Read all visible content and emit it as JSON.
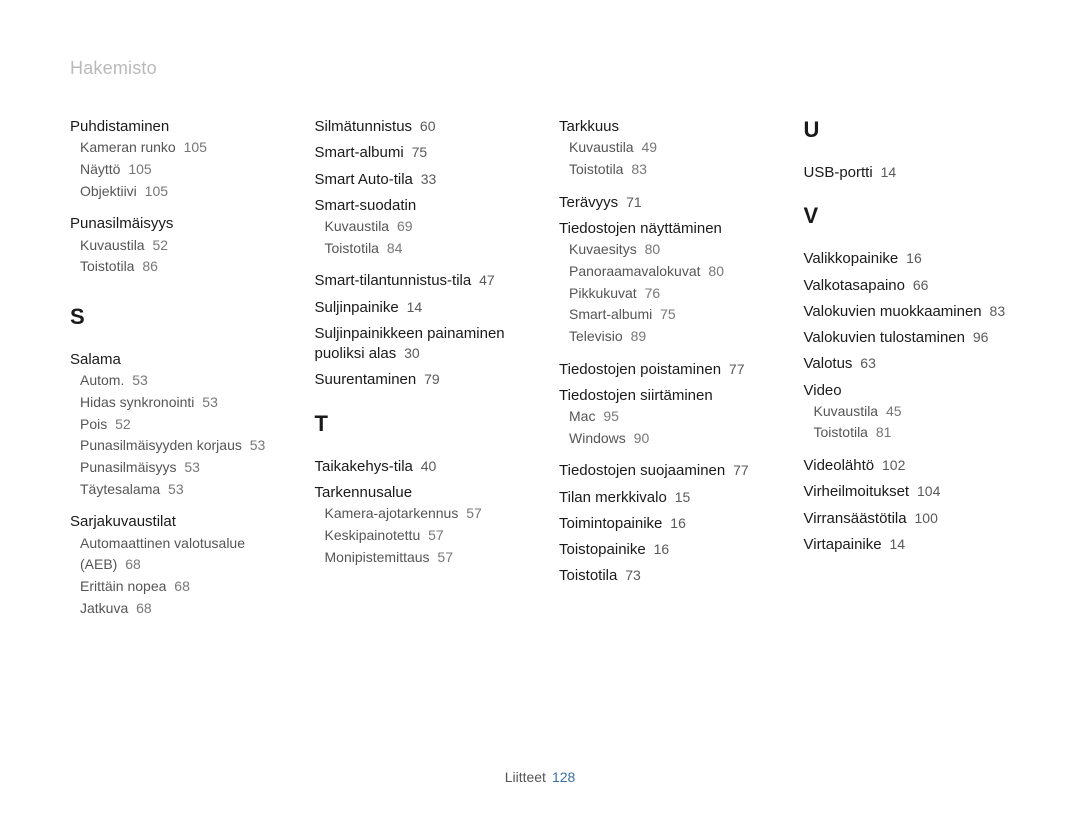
{
  "header": "Hakemisto",
  "footer": {
    "label": "Liitteet",
    "page": "128"
  },
  "columns": [
    {
      "sections": [
        {
          "type": "main-group",
          "title": "Puhdistaminen",
          "subs": [
            {
              "label": "Kameran runko",
              "page": "105"
            },
            {
              "label": "Näyttö",
              "page": "105"
            },
            {
              "label": "Objektiivi",
              "page": "105"
            }
          ]
        },
        {
          "type": "main-group",
          "title": "Punasilmäisyys",
          "subs": [
            {
              "label": "Kuvaustila",
              "page": "52"
            },
            {
              "label": "Toistotila",
              "page": "86"
            }
          ]
        },
        {
          "type": "letter",
          "label": "S"
        },
        {
          "type": "main-group",
          "title": "Salama",
          "subs": [
            {
              "label": "Autom.",
              "page": "53"
            },
            {
              "label": "Hidas synkronointi",
              "page": "53"
            },
            {
              "label": "Pois",
              "page": "52"
            },
            {
              "label": "Punasilmäisyyden korjaus",
              "page": "53"
            },
            {
              "label": "Punasilmäisyys",
              "page": "53"
            },
            {
              "label": "Täytesalama",
              "page": "53"
            }
          ]
        },
        {
          "type": "main-group",
          "title": "Sarjakuvaustilat",
          "subs": [
            {
              "label": "Automaattinen valotusalue (AEB)",
              "page": "68"
            },
            {
              "label": "Erittäin nopea",
              "page": "68"
            },
            {
              "label": "Jatkuva",
              "page": "68"
            }
          ]
        }
      ]
    },
    {
      "sections": [
        {
          "type": "main",
          "label": "Silmätunnistus",
          "page": "60"
        },
        {
          "type": "main",
          "label": "Smart-albumi",
          "page": "75"
        },
        {
          "type": "main",
          "label": "Smart Auto-tila",
          "page": "33"
        },
        {
          "type": "main-group",
          "title": "Smart-suodatin",
          "subs": [
            {
              "label": "Kuvaustila",
              "page": "69"
            },
            {
              "label": "Toistotila",
              "page": "84"
            }
          ]
        },
        {
          "type": "main",
          "label": "Smart-tilantunnistus-tila",
          "page": "47"
        },
        {
          "type": "main",
          "label": "Suljinpainike",
          "page": "14"
        },
        {
          "type": "main",
          "label": "Suljinpainikkeen painaminen puoliksi alas",
          "page": "30"
        },
        {
          "type": "main",
          "label": "Suurentaminen",
          "page": "79"
        },
        {
          "type": "letter",
          "label": "T"
        },
        {
          "type": "main",
          "label": "Taikakehys-tila",
          "page": "40"
        },
        {
          "type": "main-group",
          "title": "Tarkennusalue",
          "subs": [
            {
              "label": "Kamera-ajotarkennus",
              "page": "57"
            },
            {
              "label": "Keskipainotettu",
              "page": "57"
            },
            {
              "label": "Monipistemittaus",
              "page": "57"
            }
          ]
        }
      ]
    },
    {
      "sections": [
        {
          "type": "main-group",
          "title": "Tarkkuus",
          "subs": [
            {
              "label": "Kuvaustila",
              "page": "49"
            },
            {
              "label": "Toistotila",
              "page": "83"
            }
          ]
        },
        {
          "type": "main",
          "label": "Terävyys",
          "page": "71"
        },
        {
          "type": "main-group",
          "title": "Tiedostojen näyttäminen",
          "subs": [
            {
              "label": "Kuvaesitys",
              "page": "80"
            },
            {
              "label": "Panoraamavalokuvat",
              "page": "80"
            },
            {
              "label": "Pikkukuvat",
              "page": "76"
            },
            {
              "label": "Smart-albumi",
              "page": "75"
            },
            {
              "label": "Televisio",
              "page": "89"
            }
          ]
        },
        {
          "type": "main",
          "label": "Tiedostojen poistaminen",
          "page": "77"
        },
        {
          "type": "main-group",
          "title": "Tiedostojen siirtäminen",
          "subs": [
            {
              "label": "Mac",
              "page": "95"
            },
            {
              "label": "Windows",
              "page": "90"
            }
          ]
        },
        {
          "type": "main",
          "label": "Tiedostojen suojaaminen",
          "page": "77"
        },
        {
          "type": "main",
          "label": "Tilan merkkivalo",
          "page": "15"
        },
        {
          "type": "main",
          "label": "Toimintopainike",
          "page": "16"
        },
        {
          "type": "main",
          "label": "Toistopainike",
          "page": "16"
        },
        {
          "type": "main",
          "label": "Toistotila",
          "page": "73"
        }
      ]
    },
    {
      "sections": [
        {
          "type": "letter",
          "label": "U",
          "first": true
        },
        {
          "type": "main",
          "label": "USB-portti",
          "page": "14"
        },
        {
          "type": "letter",
          "label": "V"
        },
        {
          "type": "main",
          "label": "Valikkopainike",
          "page": "16"
        },
        {
          "type": "main",
          "label": "Valkotasapaino",
          "page": "66"
        },
        {
          "type": "main",
          "label": "Valokuvien muokkaaminen",
          "page": "83"
        },
        {
          "type": "main",
          "label": "Valokuvien tulostaminen",
          "page": "96"
        },
        {
          "type": "main",
          "label": "Valotus",
          "page": "63"
        },
        {
          "type": "main-group",
          "title": "Video",
          "subs": [
            {
              "label": "Kuvaustila",
              "page": "45"
            },
            {
              "label": "Toistotila",
              "page": "81"
            }
          ]
        },
        {
          "type": "main",
          "label": "Videolähtö",
          "page": "102"
        },
        {
          "type": "main",
          "label": "Virheilmoitukset",
          "page": "104"
        },
        {
          "type": "main",
          "label": "Virransäästötila",
          "page": "100"
        },
        {
          "type": "main",
          "label": "Virtapainike",
          "page": "14"
        }
      ]
    }
  ]
}
